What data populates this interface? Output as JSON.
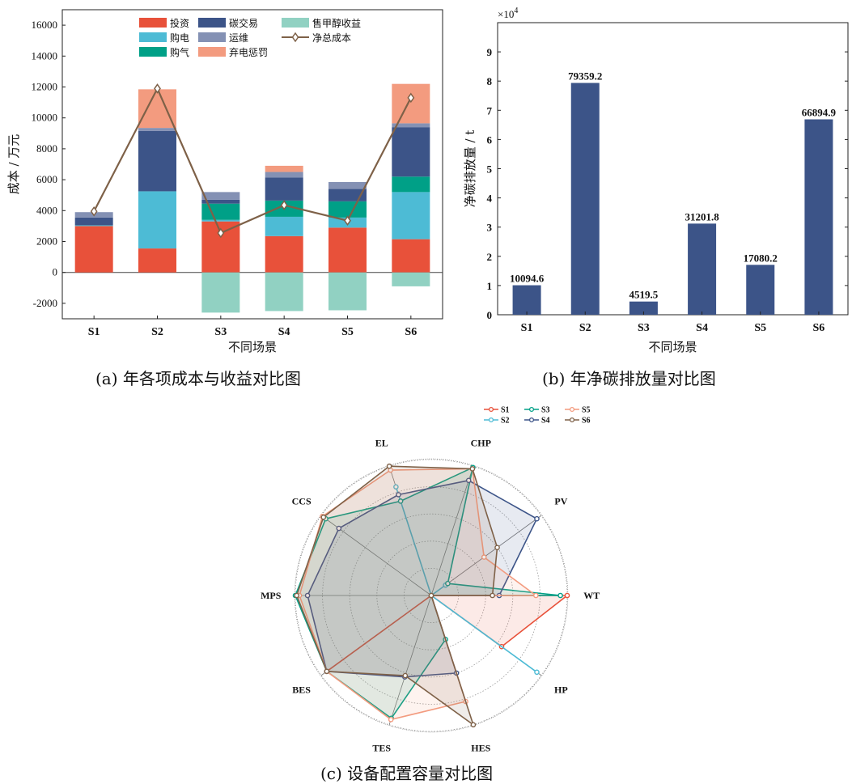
{
  "captions": {
    "a": "(a)  年各项成本与收益对比图",
    "b": "(b)  年净碳排放量对比图",
    "c": "(c)  设备配置容量对比图"
  },
  "chart_data": [
    {
      "id": "a",
      "type": "bar",
      "stacked": true,
      "categories": [
        "S1",
        "S2",
        "S3",
        "S4",
        "S5",
        "S6"
      ],
      "xlabel": "不同场景",
      "ylabel": "成本  / 万元",
      "ylim": [
        -3000,
        17000
      ],
      "yticks": [
        -2000,
        0,
        2000,
        4000,
        6000,
        8000,
        10000,
        12000,
        14000,
        16000
      ],
      "legend_position": "top",
      "series": [
        {
          "name": "投资",
          "color": "#E8513A",
          "values": [
            3000,
            1550,
            3300,
            2350,
            2900,
            2150
          ]
        },
        {
          "name": "购电",
          "color": "#4DBBD5",
          "values": [
            50,
            3700,
            100,
            1250,
            650,
            3050
          ]
        },
        {
          "name": "购气",
          "color": "#00A087",
          "values": [
            0,
            0,
            1050,
            1050,
            1050,
            1000
          ]
        },
        {
          "name": "碳交易",
          "color": "#3C5488",
          "values": [
            500,
            3900,
            250,
            1500,
            800,
            3200
          ]
        },
        {
          "name": "运维",
          "color": "#8491B4",
          "values": [
            350,
            200,
            500,
            350,
            450,
            250
          ]
        },
        {
          "name": "弃电惩罚",
          "color": "#F39B7F",
          "values": [
            0,
            2500,
            0,
            400,
            0,
            2550
          ]
        },
        {
          "name": "售甲醇收益",
          "color": "#91D1C2",
          "values": [
            0,
            0,
            -2600,
            -2500,
            -2450,
            -900
          ]
        }
      ],
      "line": {
        "name": "净总成本",
        "color": "#7E6148",
        "values": [
          3950,
          11900,
          2550,
          4350,
          3350,
          11300
        ]
      }
    },
    {
      "id": "b",
      "type": "bar",
      "categories": [
        "S1",
        "S2",
        "S3",
        "S4",
        "S5",
        "S6"
      ],
      "values": [
        10094.6,
        79359.2,
        4519.5,
        31201.8,
        17080.2,
        66894.9
      ],
      "value_labels": [
        "10094.6",
        "79359.2",
        "4519.5",
        "31201.8",
        "17080.2",
        "66894.9"
      ],
      "color": "#3C5488",
      "xlabel": "不同场景",
      "ylabel": "净碳排放量  / t",
      "axis_multiplier": "×10^4",
      "ylim": [
        0,
        100000
      ],
      "yticks": [
        0,
        1,
        2,
        3,
        4,
        5,
        6,
        7,
        8,
        9
      ]
    },
    {
      "id": "c",
      "type": "radar",
      "axes": [
        "WT",
        "PV",
        "CHP",
        "EL",
        "CCS",
        "MPS",
        "BES",
        "TES",
        "HES",
        "HP"
      ],
      "range": [
        0,
        1
      ],
      "legend_position": "top",
      "series": [
        {
          "name": "S1",
          "color": "#E8513A",
          "values": [
            1.0,
            0.0,
            0.0,
            0.0,
            0.0,
            0.0,
            0.95,
            0.0,
            0.0,
            0.64
          ]
        },
        {
          "name": "S2",
          "color": "#4DBBD5",
          "values": [
            0.0,
            0.13,
            0.0,
            0.84,
            0.0,
            0.0,
            0.0,
            0.0,
            0.0,
            0.96
          ]
        },
        {
          "name": "S3",
          "color": "#00A087",
          "values": [
            0.95,
            0.15,
            0.99,
            0.73,
            0.96,
            1.0,
            0.95,
            0.95,
            0.34,
            0.0
          ]
        },
        {
          "name": "S4",
          "color": "#3C5488",
          "values": [
            0.5,
            0.96,
            0.89,
            0.78,
            0.84,
            0.91,
            0.95,
            0.63,
            0.6,
            0.0
          ]
        },
        {
          "name": "S5",
          "color": "#F39B7F",
          "values": [
            0.77,
            0.48,
            0.98,
            0.97,
            0.99,
            0.97,
            0.95,
            0.96,
            0.82,
            0.0
          ]
        },
        {
          "name": "S6",
          "color": "#7E6148",
          "values": [
            0.45,
            0.6,
            0.98,
            1.0,
            0.98,
            0.99,
            0.95,
            0.62,
            1.0,
            0.0
          ]
        }
      ]
    }
  ]
}
